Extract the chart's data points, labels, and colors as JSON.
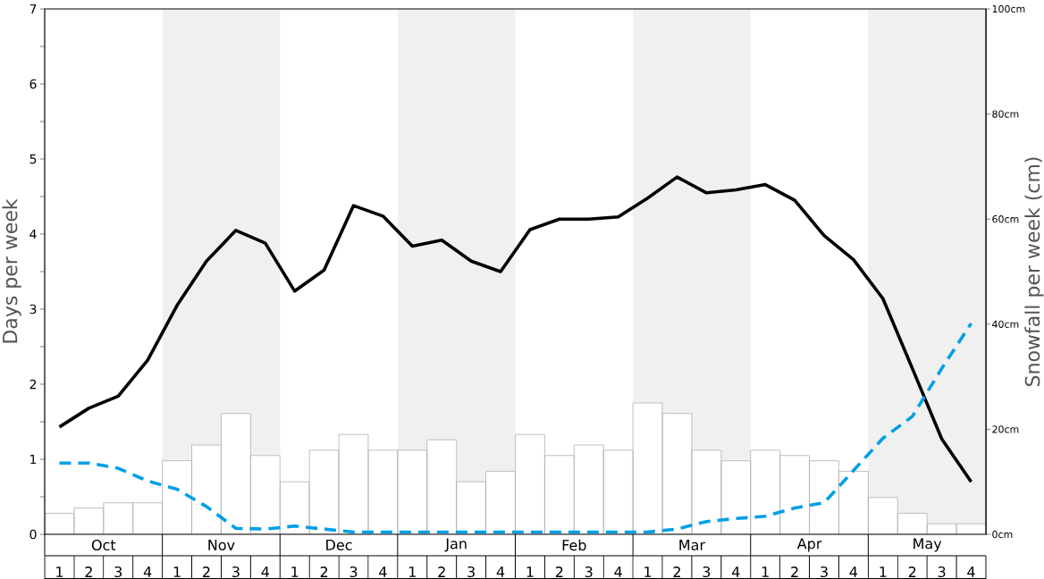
{
  "chart_data": {
    "type": "bar",
    "ylabel": "Days per week",
    "y2label": "Snowfall per week (cm)",
    "annotations": [
      "Oct",
      "Nov",
      "Dec",
      "Jan",
      "Feb",
      "Mar",
      "Apr",
      "May"
    ],
    "categories": [
      "1",
      "2",
      "3",
      "4",
      "1",
      "2",
      "3",
      "4",
      "1",
      "2",
      "3",
      "4",
      "1",
      "2",
      "3",
      "4",
      "1",
      "2",
      "3",
      "4",
      "1",
      "2",
      "3",
      "4",
      "1",
      "2",
      "3",
      "4",
      "1",
      "2",
      "3",
      "4"
    ],
    "ylim": [
      0,
      7
    ],
    "yticks": [
      0,
      {
        "value": 0.5,
        "label": null
      },
      1,
      {
        "value": 1.5,
        "label": null
      },
      2,
      {
        "value": 2.5,
        "label": null
      },
      3,
      {
        "value": 3.5,
        "label": null
      },
      4,
      {
        "value": 4.5,
        "label": null
      },
      5,
      {
        "value": 5.5,
        "label": null
      },
      6,
      {
        "value": 6.5,
        "label": null
      },
      7
    ],
    "y2lim": [
      0,
      100
    ],
    "y2ticks": [
      {
        "value": 0,
        "label": "0cm"
      },
      {
        "value": 20,
        "label": "20cm"
      },
      {
        "value": 40,
        "label": "40cm"
      },
      {
        "value": 60,
        "label": "60cm"
      },
      {
        "value": 80,
        "label": "80cm"
      },
      {
        "value": 100,
        "label": "100cm"
      }
    ],
    "series": [
      {
        "axis": "y2",
        "color": "#ffffff",
        "values": [
          4,
          5,
          6,
          6,
          14,
          17,
          23,
          15,
          10,
          16,
          19,
          16,
          16,
          18,
          10,
          12,
          19,
          15,
          17,
          16,
          25,
          23,
          16,
          14,
          16,
          15,
          14,
          12,
          7,
          4,
          2,
          2
        ]
      },
      {
        "type": "line",
        "color": "#000000",
        "line_style": "solid",
        "values": [
          1.43,
          1.68,
          1.84,
          2.32,
          3.05,
          3.64,
          4.05,
          3.88,
          3.24,
          3.52,
          4.38,
          4.24,
          3.84,
          3.92,
          3.64,
          3.5,
          4.06,
          4.2,
          4.2,
          4.23,
          4.48,
          4.76,
          4.55,
          4.59,
          4.66,
          4.45,
          3.98,
          3.66,
          3.14,
          2.21,
          1.27,
          0.7
        ]
      },
      {
        "type": "line",
        "color": "#009fe8",
        "line_style": "dashed",
        "values": [
          0.95,
          0.95,
          0.88,
          0.71,
          0.6,
          0.37,
          0.08,
          0.07,
          0.11,
          0.07,
          0.03,
          0.03,
          0.03,
          0.03,
          0.03,
          0.03,
          0.03,
          0.03,
          0.03,
          0.03,
          0.03,
          0.07,
          0.17,
          0.21,
          0.24,
          0.35,
          0.42,
          0.85,
          1.28,
          1.57,
          2.21,
          2.81
        ]
      }
    ]
  }
}
